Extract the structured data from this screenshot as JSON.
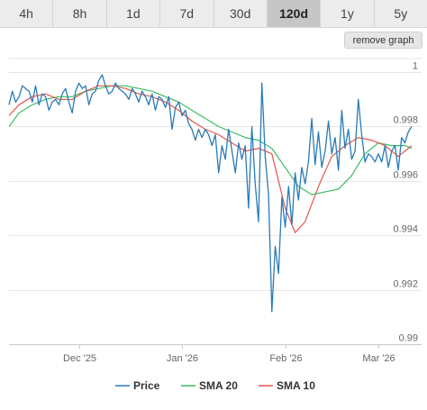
{
  "tabs": [
    {
      "label": "4h",
      "active": false
    },
    {
      "label": "8h",
      "active": false
    },
    {
      "label": "1d",
      "active": false
    },
    {
      "label": "7d",
      "active": false
    },
    {
      "label": "30d",
      "active": false
    },
    {
      "label": "120d",
      "active": true
    },
    {
      "label": "1y",
      "active": false
    },
    {
      "label": "5y",
      "active": false
    }
  ],
  "remove_button": {
    "label": "remove graph"
  },
  "chart_data": {
    "type": "line",
    "title": "",
    "xlabel": "",
    "ylabel": "",
    "ylim": [
      0.99,
      1.0005
    ],
    "xlim": [
      "2025-11-10",
      "2026-03-14"
    ],
    "y_ticks": [
      {
        "value": 1.0,
        "label": "1"
      },
      {
        "value": 0.998,
        "label": "0.998"
      },
      {
        "value": 0.996,
        "label": "0.996"
      },
      {
        "value": 0.994,
        "label": "0.994"
      },
      {
        "value": 0.992,
        "label": "0.992"
      },
      {
        "value": 0.99,
        "label": "0.99"
      }
    ],
    "x_ticks": [
      {
        "value": "2025-12-01",
        "label": "Dec '25"
      },
      {
        "value": "2026-01-01",
        "label": "Jan '26"
      },
      {
        "value": "2026-02-01",
        "label": "Feb '26"
      },
      {
        "value": "2026-03-01",
        "label": "Mar '26"
      }
    ],
    "grid": true,
    "legend_position": "bottom-center",
    "series": [
      {
        "name": "Price",
        "color": "#2a7ab8",
        "points": [
          [
            "2025-11-10",
            0.9988
          ],
          [
            "2025-11-11",
            0.9993
          ],
          [
            "2025-11-12",
            0.9989
          ],
          [
            "2025-11-13",
            0.9991
          ],
          [
            "2025-11-14",
            0.9995
          ],
          [
            "2025-11-15",
            0.9994
          ],
          [
            "2025-11-16",
            0.9993
          ],
          [
            "2025-11-17",
            0.9989
          ],
          [
            "2025-11-18",
            0.9995
          ],
          [
            "2025-11-19",
            0.9988
          ],
          [
            "2025-11-20",
            0.9992
          ],
          [
            "2025-11-21",
            0.9991
          ],
          [
            "2025-11-22",
            0.9986
          ],
          [
            "2025-11-23",
            0.9989
          ],
          [
            "2025-11-24",
            0.999
          ],
          [
            "2025-11-25",
            0.9988
          ],
          [
            "2025-11-26",
            0.9992
          ],
          [
            "2025-11-27",
            0.9994
          ],
          [
            "2025-11-28",
            0.9989
          ],
          [
            "2025-11-29",
            0.9985
          ],
          [
            "2025-11-30",
            0.9993
          ],
          [
            "2025-12-01",
            0.9996
          ],
          [
            "2025-12-02",
            0.9994
          ],
          [
            "2025-12-03",
            0.9995
          ],
          [
            "2025-12-04",
            0.9988
          ],
          [
            "2025-12-05",
            0.9992
          ],
          [
            "2025-12-06",
            0.9993
          ],
          [
            "2025-12-07",
            0.9997
          ],
          [
            "2025-12-08",
            0.9999
          ],
          [
            "2025-12-09",
            0.9995
          ],
          [
            "2025-12-10",
            0.9992
          ],
          [
            "2025-12-11",
            0.9993
          ],
          [
            "2025-12-12",
            0.9996
          ],
          [
            "2025-12-13",
            0.9994
          ],
          [
            "2025-12-14",
            0.9993
          ],
          [
            "2025-12-15",
            0.9992
          ],
          [
            "2025-12-16",
            0.999
          ],
          [
            "2025-12-17",
            0.9994
          ],
          [
            "2025-12-18",
            0.9992
          ],
          [
            "2025-12-19",
            0.9989
          ],
          [
            "2025-12-20",
            0.9993
          ],
          [
            "2025-12-21",
            0.9991
          ],
          [
            "2025-12-22",
            0.9988
          ],
          [
            "2025-12-23",
            0.9992
          ],
          [
            "2025-12-24",
            0.9986
          ],
          [
            "2025-12-25",
            0.9991
          ],
          [
            "2025-12-26",
            0.999
          ],
          [
            "2025-12-27",
            0.9987
          ],
          [
            "2025-12-28",
            0.9991
          ],
          [
            "2025-12-29",
            0.9979
          ],
          [
            "2025-12-30",
            0.9987
          ],
          [
            "2025-12-31",
            0.9989
          ],
          [
            "2026-01-01",
            0.9984
          ],
          [
            "2026-01-02",
            0.9986
          ],
          [
            "2026-01-03",
            0.9981
          ],
          [
            "2026-01-04",
            0.9979
          ],
          [
            "2026-01-05",
            0.9975
          ],
          [
            "2026-01-06",
            0.9979
          ],
          [
            "2026-01-07",
            0.9976
          ],
          [
            "2026-01-08",
            0.9979
          ],
          [
            "2026-01-09",
            0.9977
          ],
          [
            "2026-01-10",
            0.9973
          ],
          [
            "2026-01-11",
            0.9977
          ],
          [
            "2026-01-12",
            0.9963
          ],
          [
            "2026-01-13",
            0.9973
          ],
          [
            "2026-01-14",
            0.9968
          ],
          [
            "2026-01-15",
            0.9979
          ],
          [
            "2026-01-16",
            0.9971
          ],
          [
            "2026-01-17",
            0.9963
          ],
          [
            "2026-01-18",
            0.9974
          ],
          [
            "2026-01-19",
            0.9968
          ],
          [
            "2026-01-20",
            0.9973
          ],
          [
            "2026-01-21",
            0.995
          ],
          [
            "2026-01-22",
            0.998
          ],
          [
            "2026-01-23",
            0.9959
          ],
          [
            "2026-01-24",
            0.9945
          ],
          [
            "2026-01-25",
            0.9996
          ],
          [
            "2026-01-26",
            0.9969
          ],
          [
            "2026-01-27",
            0.9955
          ],
          [
            "2026-01-28",
            0.9912
          ],
          [
            "2026-01-29",
            0.9936
          ],
          [
            "2026-01-30",
            0.9926
          ],
          [
            "2026-01-31",
            0.9954
          ],
          [
            "2026-02-01",
            0.9943
          ],
          [
            "2026-02-02",
            0.9958
          ],
          [
            "2026-02-03",
            0.9944
          ],
          [
            "2026-02-04",
            0.9963
          ],
          [
            "2026-02-05",
            0.9953
          ],
          [
            "2026-02-06",
            0.9965
          ],
          [
            "2026-02-07",
            0.9959
          ],
          [
            "2026-02-08",
            0.9967
          ],
          [
            "2026-02-09",
            0.9983
          ],
          [
            "2026-02-10",
            0.9966
          ],
          [
            "2026-02-11",
            0.9978
          ],
          [
            "2026-02-12",
            0.9965
          ],
          [
            "2026-02-13",
            0.9971
          ],
          [
            "2026-02-14",
            0.9982
          ],
          [
            "2026-02-15",
            0.997
          ],
          [
            "2026-02-16",
            0.9976
          ],
          [
            "2026-02-17",
            0.9964
          ],
          [
            "2026-02-18",
            0.9986
          ],
          [
            "2026-02-19",
            0.9972
          ],
          [
            "2026-02-20",
            0.9979
          ],
          [
            "2026-02-21",
            0.9968
          ],
          [
            "2026-02-22",
            0.9971
          ],
          [
            "2026-02-23",
            0.999
          ],
          [
            "2026-02-24",
            0.9977
          ],
          [
            "2026-02-25",
            0.9967
          ],
          [
            "2026-02-26",
            0.997
          ],
          [
            "2026-02-27",
            0.9969
          ],
          [
            "2026-02-28",
            0.9967
          ],
          [
            "2026-03-01",
            0.997
          ],
          [
            "2026-03-02",
            0.9967
          ],
          [
            "2026-03-03",
            0.9973
          ],
          [
            "2026-03-04",
            0.9965
          ],
          [
            "2026-03-05",
            0.9971
          ],
          [
            "2026-03-06",
            0.9973
          ],
          [
            "2026-03-07",
            0.9964
          ],
          [
            "2026-03-08",
            0.9976
          ],
          [
            "2026-03-09",
            0.9974
          ],
          [
            "2026-03-10",
            0.9978
          ],
          [
            "2026-03-11",
            0.998
          ]
        ]
      },
      {
        "name": "SMA 20",
        "color": "#3dbd63",
        "points": [
          [
            "2025-11-10",
            0.998
          ],
          [
            "2025-11-13",
            0.9985
          ],
          [
            "2025-11-17",
            0.9988
          ],
          [
            "2025-11-21",
            0.999
          ],
          [
            "2025-11-25",
            0.9991
          ],
          [
            "2025-11-29",
            0.9991
          ],
          [
            "2025-12-03",
            0.9993
          ],
          [
            "2025-12-07",
            0.9994
          ],
          [
            "2025-12-11",
            0.9995
          ],
          [
            "2025-12-15",
            0.9995
          ],
          [
            "2025-12-19",
            0.9994
          ],
          [
            "2025-12-23",
            0.9993
          ],
          [
            "2025-12-27",
            0.9991
          ],
          [
            "2025-12-31",
            0.9989
          ],
          [
            "2026-01-04",
            0.9986
          ],
          [
            "2026-01-08",
            0.9983
          ],
          [
            "2026-01-12",
            0.998
          ],
          [
            "2026-01-16",
            0.9978
          ],
          [
            "2026-01-20",
            0.9976
          ],
          [
            "2026-01-24",
            0.9975
          ],
          [
            "2026-01-28",
            0.9972
          ],
          [
            "2026-02-01",
            0.9965
          ],
          [
            "2026-02-05",
            0.9958
          ],
          [
            "2026-02-09",
            0.9955
          ],
          [
            "2026-02-13",
            0.9956
          ],
          [
            "2026-02-17",
            0.9957
          ],
          [
            "2026-02-21",
            0.9962
          ],
          [
            "2026-02-25",
            0.997
          ],
          [
            "2026-03-01",
            0.9974
          ],
          [
            "2026-03-05",
            0.9973
          ],
          [
            "2026-03-09",
            0.9973
          ],
          [
            "2026-03-11",
            0.9972
          ]
        ]
      },
      {
        "name": "SMA 10",
        "color": "#e4574a",
        "points": [
          [
            "2025-11-10",
            0.9984
          ],
          [
            "2025-11-13",
            0.9988
          ],
          [
            "2025-11-17",
            0.9991
          ],
          [
            "2025-11-21",
            0.9992
          ],
          [
            "2025-11-25",
            0.999
          ],
          [
            "2025-11-29",
            0.999
          ],
          [
            "2025-12-03",
            0.9993
          ],
          [
            "2025-12-07",
            0.9995
          ],
          [
            "2025-12-11",
            0.9995
          ],
          [
            "2025-12-15",
            0.9994
          ],
          [
            "2025-12-19",
            0.9992
          ],
          [
            "2025-12-23",
            0.9991
          ],
          [
            "2025-12-27",
            0.9989
          ],
          [
            "2025-12-31",
            0.9986
          ],
          [
            "2026-01-04",
            0.9982
          ],
          [
            "2026-01-08",
            0.9979
          ],
          [
            "2026-01-12",
            0.9977
          ],
          [
            "2026-01-16",
            0.9974
          ],
          [
            "2026-01-20",
            0.9971
          ],
          [
            "2026-01-24",
            0.9972
          ],
          [
            "2026-01-28",
            0.997
          ],
          [
            "2026-02-01",
            0.995
          ],
          [
            "2026-02-04",
            0.9941
          ],
          [
            "2026-02-07",
            0.9945
          ],
          [
            "2026-02-11",
            0.9958
          ],
          [
            "2026-02-15",
            0.9969
          ],
          [
            "2026-02-19",
            0.9973
          ],
          [
            "2026-02-23",
            0.9976
          ],
          [
            "2026-02-27",
            0.9975
          ],
          [
            "2026-03-03",
            0.9973
          ],
          [
            "2026-03-07",
            0.9969
          ],
          [
            "2026-03-11",
            0.9973
          ]
        ]
      }
    ]
  }
}
